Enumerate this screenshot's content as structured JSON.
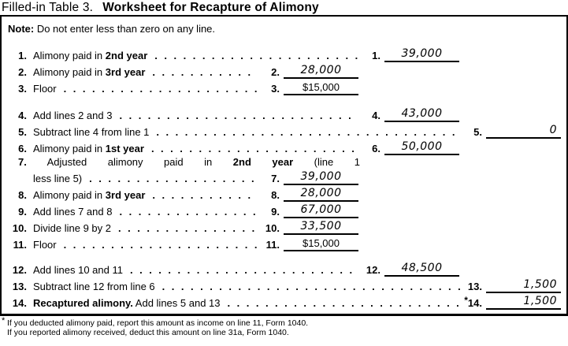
{
  "title": {
    "prefix": "Filled-in Table 3.",
    "main": "Worksheet for Recapture of Alimony"
  },
  "note": {
    "label": "Note:",
    "text": " Do not enter less than zero on any line."
  },
  "ui": {
    "leader_dots": "............................................................",
    "ink_color": "#000000",
    "background": "#ffffff"
  },
  "rows": [
    {
      "num": "1.",
      "s1": "Alimony paid in ",
      "s2": "2nd year",
      "s3": "",
      "ans_num": "1.",
      "value": "39,000"
    },
    {
      "num": "2.",
      "s1": "Alimony paid in ",
      "s2": "3rd year",
      "s3": "",
      "ans_num": "2.",
      "value": "28,000"
    },
    {
      "num": "3.",
      "s1": "Floor",
      "s2": "",
      "s3": "",
      "ans_num": "3.",
      "value": "$15,000"
    },
    {
      "num": "4.",
      "s1": "Add lines 2 and 3",
      "s2": "",
      "s3": "",
      "ans_num": "4.",
      "value": "43,000"
    },
    {
      "num": "5.",
      "s1": "Subtract line 4 from line 1",
      "s2": "",
      "s3": "",
      "ans_num": "5.",
      "value": "0"
    },
    {
      "num": "6.",
      "s1": "Alimony paid in ",
      "s2": "1st year",
      "s3": "",
      "ans_num": "6.",
      "value": "50,000"
    },
    {
      "num": "7.",
      "s1": "Adjusted alimony paid in ",
      "s2": "2nd year",
      "s3": " (line 1",
      "s4": "less line 5)",
      "ans_num": "7.",
      "value": "39,000"
    },
    {
      "num": "8.",
      "s1": "Alimony paid in ",
      "s2": "3rd year",
      "s3": "",
      "ans_num": "8.",
      "value": "28,000"
    },
    {
      "num": "9.",
      "s1": "Add lines 7 and 8",
      "s2": "",
      "s3": "",
      "ans_num": "9.",
      "value": "67,000"
    },
    {
      "num": "10.",
      "s1": "Divide line 9 by 2",
      "s2": "",
      "s3": "",
      "ans_num": "10.",
      "value": "33,500"
    },
    {
      "num": "11.",
      "s1": "Floor",
      "s2": "",
      "s3": "",
      "ans_num": "11.",
      "value": "$15,000"
    },
    {
      "num": "12.",
      "s1": "Add lines 10 and 11",
      "s2": "",
      "s3": "",
      "ans_num": "12.",
      "value": "48,500"
    },
    {
      "num": "13.",
      "s1": "Subtract line 12 from line 6",
      "s2": "",
      "s3": "",
      "ans_num": "13.",
      "value": "1,500"
    },
    {
      "num": "14.",
      "s1": "",
      "s2": "Recaptured alimony.",
      "s3": " Add lines 5 and 13",
      "ans_num": "14.",
      "ans_prefix": "*",
      "value": "1,500"
    }
  ],
  "footnote": {
    "marker": "*",
    "line1": "If you deducted alimony paid, report this amount as income on line 11, Form 1040.",
    "line2": "If you reported alimony received, deduct this amount on line 31a, Form 1040."
  }
}
